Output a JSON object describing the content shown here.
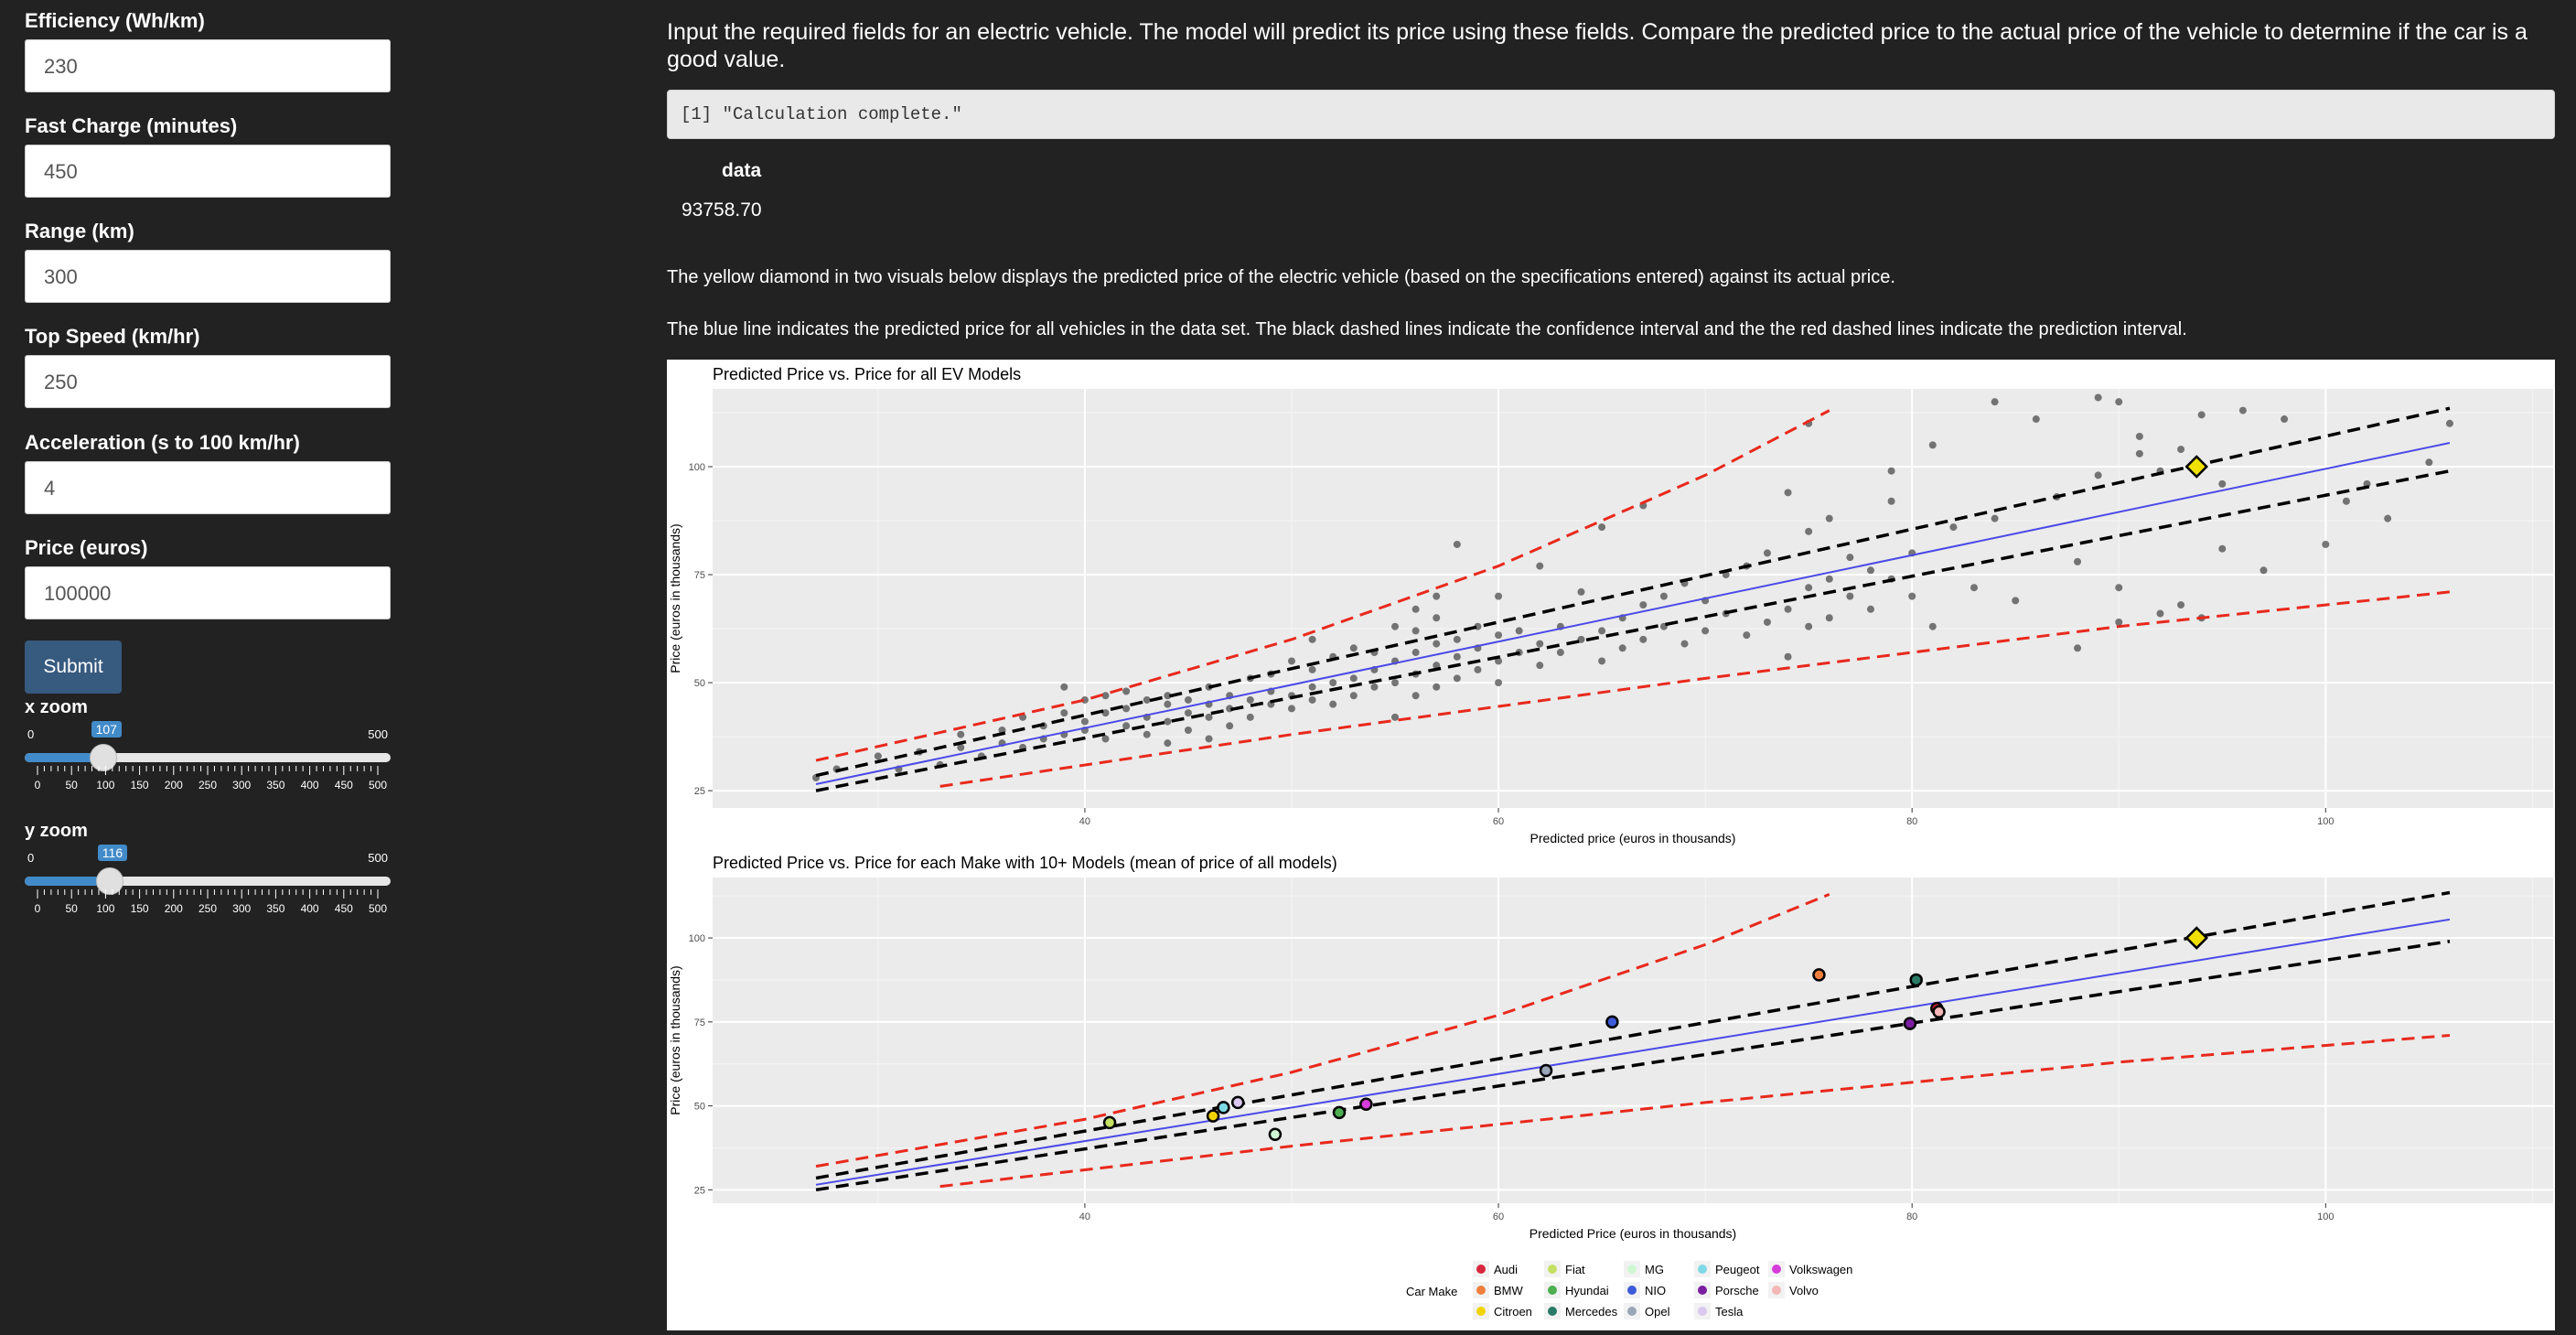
{
  "form": {
    "efficiency": {
      "label": "Efficiency (Wh/km)",
      "value": "230"
    },
    "fast_charge": {
      "label": "Fast Charge (minutes)",
      "value": "450"
    },
    "range": {
      "label": "Range (km)",
      "value": "300"
    },
    "top_speed": {
      "label": "Top Speed (km/hr)",
      "value": "250"
    },
    "acceleration": {
      "label": "Acceleration (s to 100 km/hr)",
      "value": "4"
    },
    "price": {
      "label": "Price (euros)",
      "value": "100000"
    },
    "submit_label": "Submit"
  },
  "sliders": {
    "x_zoom": {
      "label": "x zoom",
      "min": "0",
      "max": "500",
      "value": "107",
      "level": 107
    },
    "y_zoom": {
      "label": "y zoom",
      "min": "0",
      "max": "500",
      "value": "116",
      "level": 116
    },
    "tick_labels": [
      "0",
      "50",
      "100",
      "150",
      "200",
      "250",
      "300",
      "350",
      "400",
      "450",
      "500"
    ]
  },
  "main": {
    "intro": "Input the required fields for an electric vehicle. The model will predict its price using these fields. Compare the predicted price to the actual price of the vehicle to determine if the car is a good value.",
    "status": "[1] \"Calculation complete.\"",
    "table_header": "data",
    "table_value": "93758.70",
    "para1": "The yellow diamond in two visuals below displays the predicted price of the electric vehicle (based on the specifications entered) against its actual price.",
    "para2": "The blue line indicates the predicted price for all vehicles in the data set. The black dashed lines indicate the confidence interval and the the red dashed lines indicate the prediction interval."
  },
  "colors": {
    "fit_line": "#4a4ae8",
    "confidence": "#000000",
    "prediction": "#e8291c",
    "highlight": "#f0e000",
    "panel_bg": "#ebebeb"
  },
  "chart_data": [
    {
      "type": "scatter",
      "title": "Predicted Price vs. Price for all EV Models",
      "xlabel": "Predicted price (euros in thousands)",
      "ylabel": "Price (euros in thousands)",
      "xlim": [
        22,
        111
      ],
      "ylim": [
        21,
        118
      ],
      "x_ticks": [
        40,
        60,
        80,
        100
      ],
      "y_ticks": [
        25,
        50,
        75,
        100
      ],
      "grid": true,
      "highlight_point": {
        "x": 93.76,
        "y": 100
      },
      "fit_line": {
        "x": [
          27,
          106
        ],
        "y": [
          26.5,
          105.5
        ]
      },
      "confidence_upper": {
        "x": [
          27,
          106
        ],
        "y": [
          28.5,
          113.5
        ]
      },
      "confidence_lower": {
        "x": [
          27,
          106
        ],
        "y": [
          25,
          99
        ]
      },
      "prediction_upper": {
        "x": [
          27,
          40,
          50,
          60,
          70,
          76
        ],
        "y": [
          32,
          46,
          60,
          77,
          98,
          113
        ]
      },
      "prediction_lower": {
        "x": [
          33,
          50,
          70,
          90,
          106
        ],
        "y": [
          26,
          38,
          51,
          63,
          71
        ]
      },
      "points": [
        [
          27,
          28
        ],
        [
          28,
          30
        ],
        [
          30,
          33
        ],
        [
          31,
          30
        ],
        [
          32,
          34
        ],
        [
          33,
          31
        ],
        [
          34,
          35
        ],
        [
          34,
          38
        ],
        [
          35,
          33
        ],
        [
          36,
          36
        ],
        [
          36,
          39
        ],
        [
          37,
          35
        ],
        [
          37,
          42
        ],
        [
          38,
          37
        ],
        [
          38,
          40
        ],
        [
          39,
          38
        ],
        [
          39,
          43
        ],
        [
          39,
          49
        ],
        [
          40,
          39
        ],
        [
          40,
          41
        ],
        [
          40,
          46
        ],
        [
          41,
          37
        ],
        [
          41,
          43
        ],
        [
          41,
          47
        ],
        [
          42,
          40
        ],
        [
          42,
          44
        ],
        [
          42,
          48
        ],
        [
          43,
          38
        ],
        [
          43,
          42
        ],
        [
          43,
          46
        ],
        [
          44,
          36
        ],
        [
          44,
          41
        ],
        [
          44,
          45
        ],
        [
          44,
          47
        ],
        [
          45,
          39
        ],
        [
          45,
          43
        ],
        [
          45,
          46
        ],
        [
          46,
          37
        ],
        [
          46,
          42
        ],
        [
          46,
          45
        ],
        [
          46,
          49
        ],
        [
          47,
          40
        ],
        [
          47,
          44
        ],
        [
          47,
          47
        ],
        [
          48,
          42
        ],
        [
          48,
          46
        ],
        [
          48,
          51
        ],
        [
          49,
          45
        ],
        [
          49,
          48
        ],
        [
          49,
          52
        ],
        [
          50,
          44
        ],
        [
          50,
          47
        ],
        [
          50,
          55
        ],
        [
          51,
          46
        ],
        [
          51,
          49
        ],
        [
          51,
          53
        ],
        [
          51,
          60
        ],
        [
          52,
          45
        ],
        [
          52,
          50
        ],
        [
          52,
          56
        ],
        [
          53,
          47
        ],
        [
          53,
          51
        ],
        [
          53,
          58
        ],
        [
          54,
          49
        ],
        [
          54,
          53
        ],
        [
          54,
          57
        ],
        [
          55,
          42
        ],
        [
          55,
          50
        ],
        [
          55,
          55
        ],
        [
          55,
          63
        ],
        [
          56,
          47
        ],
        [
          56,
          52
        ],
        [
          56,
          57
        ],
        [
          56,
          62
        ],
        [
          56,
          67
        ],
        [
          57,
          49
        ],
        [
          57,
          54
        ],
        [
          57,
          59
        ],
        [
          57,
          65
        ],
        [
          57,
          70
        ],
        [
          58,
          51
        ],
        [
          58,
          56
        ],
        [
          58,
          60
        ],
        [
          58,
          82
        ],
        [
          59,
          53
        ],
        [
          59,
          58
        ],
        [
          59,
          63
        ],
        [
          60,
          50
        ],
        [
          60,
          55
        ],
        [
          60,
          61
        ],
        [
          60,
          70
        ],
        [
          61,
          57
        ],
        [
          61,
          62
        ],
        [
          62,
          54
        ],
        [
          62,
          59
        ],
        [
          62,
          77
        ],
        [
          63,
          57
        ],
        [
          63,
          63
        ],
        [
          64,
          60
        ],
        [
          64,
          71
        ],
        [
          65,
          55
        ],
        [
          65,
          62
        ],
        [
          65,
          86
        ],
        [
          66,
          58
        ],
        [
          66,
          65
        ],
        [
          67,
          60
        ],
        [
          67,
          68
        ],
        [
          67,
          91
        ],
        [
          68,
          63
        ],
        [
          68,
          70
        ],
        [
          69,
          59
        ],
        [
          69,
          73
        ],
        [
          70,
          62
        ],
        [
          70,
          69
        ],
        [
          71,
          66
        ],
        [
          71,
          75
        ],
        [
          72,
          61
        ],
        [
          72,
          77
        ],
        [
          73,
          64
        ],
        [
          73,
          80
        ],
        [
          74,
          56
        ],
        [
          74,
          67
        ],
        [
          74,
          94
        ],
        [
          75,
          63
        ],
        [
          75,
          72
        ],
        [
          75,
          85
        ],
        [
          75,
          110
        ],
        [
          76,
          65
        ],
        [
          76,
          74
        ],
        [
          76,
          88
        ],
        [
          77,
          70
        ],
        [
          77,
          79
        ],
        [
          78,
          67
        ],
        [
          78,
          76
        ],
        [
          79,
          74
        ],
        [
          79,
          92
        ],
        [
          79,
          99
        ],
        [
          80,
          70
        ],
        [
          80,
          80
        ],
        [
          81,
          63
        ],
        [
          81,
          105
        ],
        [
          82,
          86
        ],
        [
          83,
          72
        ],
        [
          84,
          88
        ],
        [
          84,
          115
        ],
        [
          85,
          69
        ],
        [
          86,
          111
        ],
        [
          87,
          93
        ],
        [
          88,
          58
        ],
        [
          88,
          78
        ],
        [
          89,
          116
        ],
        [
          89,
          98
        ],
        [
          90,
          64
        ],
        [
          90,
          72
        ],
        [
          90,
          115
        ],
        [
          91,
          103
        ],
        [
          91,
          107
        ],
        [
          92,
          66
        ],
        [
          92,
          99
        ],
        [
          93,
          68
        ],
        [
          93,
          104
        ],
        [
          94,
          65
        ],
        [
          94,
          112
        ],
        [
          95,
          81
        ],
        [
          95,
          96
        ],
        [
          96,
          113
        ],
        [
          97,
          76
        ],
        [
          98,
          111
        ],
        [
          100,
          82
        ],
        [
          101,
          92
        ],
        [
          102,
          96
        ],
        [
          103,
          88
        ],
        [
          105,
          101
        ],
        [
          106,
          110
        ]
      ]
    },
    {
      "type": "scatter",
      "title": "Predicted Price vs. Price for each Make with 10+ Models (mean of price of all models)",
      "xlabel": "Predicted Price (euros in thousands)",
      "ylabel": "Price (euros in thousands)",
      "xlim": [
        22,
        111
      ],
      "ylim": [
        21,
        118
      ],
      "x_ticks": [
        40,
        60,
        80,
        100
      ],
      "y_ticks": [
        25,
        50,
        75,
        100
      ],
      "grid": true,
      "highlight_point": {
        "x": 93.76,
        "y": 100
      },
      "fit_line": {
        "x": [
          27,
          106
        ],
        "y": [
          26.5,
          105.5
        ]
      },
      "confidence_upper": {
        "x": [
          27,
          106
        ],
        "y": [
          28.5,
          113.5
        ]
      },
      "confidence_lower": {
        "x": [
          27,
          106
        ],
        "y": [
          25,
          99
        ]
      },
      "prediction_upper": {
        "x": [
          27,
          40,
          50,
          60,
          70,
          76
        ],
        "y": [
          32,
          46,
          60,
          77,
          98,
          113
        ]
      },
      "prediction_lower": {
        "x": [
          33,
          50,
          70,
          90,
          106
        ],
        "y": [
          26,
          38,
          51,
          63,
          71
        ]
      },
      "legend_title": "Car Make",
      "legend_position": "bottom",
      "makes": [
        {
          "name": "Audi",
          "color": "#d7263d",
          "x": 81.2,
          "y": 79
        },
        {
          "name": "BMW",
          "color": "#f07f3c",
          "x": 75.5,
          "y": 89
        },
        {
          "name": "Citroen",
          "color": "#f1d302",
          "x": 46.2,
          "y": 47
        },
        {
          "name": "Fiat",
          "color": "#c5e063",
          "x": 41.2,
          "y": 45
        },
        {
          "name": "Hyundai",
          "color": "#4caf50",
          "x": 52.3,
          "y": 48
        },
        {
          "name": "Mercedes",
          "color": "#2a7a66",
          "x": 80.2,
          "y": 87.5
        },
        {
          "name": "MG",
          "color": "#cff7d3",
          "x": 49.2,
          "y": 41.5
        },
        {
          "name": "NIO",
          "color": "#3d5bd9",
          "x": 65.5,
          "y": 75
        },
        {
          "name": "Opel",
          "color": "#9aa5b8",
          "x": 62.3,
          "y": 60.5
        },
        {
          "name": "Peugeot",
          "color": "#7fd8e6",
          "x": 46.7,
          "y": 49.5
        },
        {
          "name": "Porsche",
          "color": "#7b1fa2",
          "x": 79.9,
          "y": 74.5
        },
        {
          "name": "Tesla",
          "color": "#d9c8f0",
          "x": 47.4,
          "y": 51
        },
        {
          "name": "Volkswagen",
          "color": "#d63cd9",
          "x": 53.6,
          "y": 50.5
        },
        {
          "name": "Volvo",
          "color": "#f4b6b6",
          "x": 81.3,
          "y": 78
        }
      ]
    }
  ]
}
